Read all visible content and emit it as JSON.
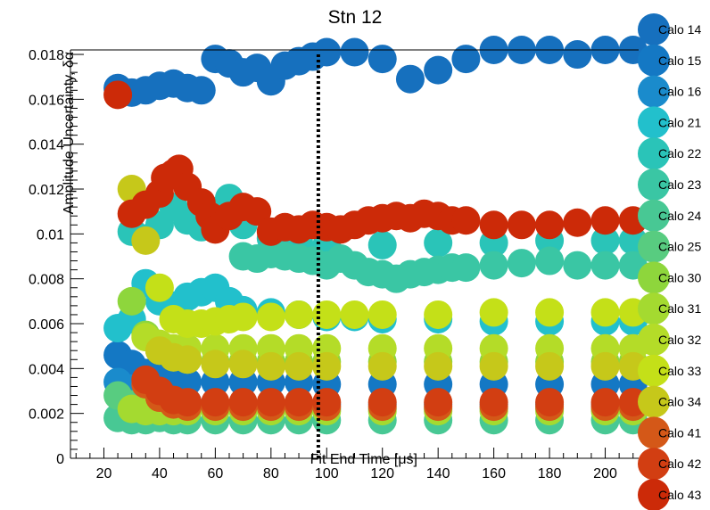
{
  "chart_data": {
    "type": "scatter",
    "title": "Stn 12",
    "xlabel": "Fit End Time [μs]",
    "ylabel": "Amplitude Uncertainty, δα",
    "xlim": [
      8,
      212
    ],
    "ylim": [
      0,
      0.0182
    ],
    "x_ticks": [
      20,
      40,
      60,
      80,
      100,
      120,
      140,
      160,
      180,
      200
    ],
    "x_tick_labels": [
      "20",
      "40",
      "60",
      "80",
      "100",
      "120",
      "140",
      "160",
      "180",
      "200"
    ],
    "y_ticks": [
      0,
      0.002,
      0.004,
      0.006,
      0.008,
      0.01,
      0.012,
      0.014,
      0.016,
      0.018
    ],
    "y_tick_labels": [
      "0",
      "0.002",
      "0.004",
      "0.006",
      "0.008",
      "0.01",
      "0.012",
      "0.014",
      "0.016",
      "0.018"
    ],
    "vline": {
      "x": 97,
      "y0": 0,
      "y1": 0.018,
      "style": "dotted",
      "color": "#000000"
    },
    "legend_position": "right",
    "series": [
      {
        "name": "Calo 14",
        "color": "#1670be",
        "x": [
          25,
          30,
          35,
          40,
          45,
          50,
          55,
          60,
          65,
          70,
          75,
          80,
          85,
          90,
          95,
          100,
          110,
          120,
          130,
          140,
          150,
          160,
          170,
          180,
          190,
          200,
          210
        ],
        "y": [
          0.0165,
          0.0163,
          0.0164,
          0.0166,
          0.0167,
          0.0165,
          0.0164,
          0.0178,
          0.0176,
          0.0172,
          0.0174,
          0.0168,
          0.0175,
          0.0177,
          0.0179,
          0.0181,
          0.0181,
          0.0178,
          0.0169,
          0.0173,
          0.0178,
          0.0182,
          0.0182,
          0.0182,
          0.018,
          0.0182,
          0.0182
        ]
      },
      {
        "name": "Calo 15",
        "color": "#1478c4",
        "x": [
          25,
          30,
          35,
          40,
          45,
          50,
          60,
          70,
          80,
          90,
          100,
          120,
          140,
          160,
          180,
          200,
          210
        ],
        "y": [
          0.0046,
          0.0042,
          0.0038,
          0.0036,
          0.0035,
          0.0034,
          0.0034,
          0.0034,
          0.0034,
          0.0034,
          0.0033,
          0.0033,
          0.0033,
          0.0033,
          0.0033,
          0.0033,
          0.0033
        ]
      },
      {
        "name": "Calo 16",
        "color": "#1a8bcc",
        "x": [
          25,
          30,
          35,
          40,
          45,
          50,
          60,
          70,
          80,
          90,
          100,
          120,
          140,
          160,
          180,
          200,
          210
        ],
        "y": [
          0.0034,
          0.0031,
          0.0028,
          0.0026,
          0.0025,
          0.0025,
          0.0024,
          0.0024,
          0.0024,
          0.0024,
          0.0024,
          0.0024,
          0.0024,
          0.0024,
          0.0024,
          0.0024,
          0.0024
        ]
      },
      {
        "name": "Calo 21",
        "color": "#22c0cc",
        "x": [
          25,
          30,
          35,
          40,
          45,
          50,
          55,
          60,
          65,
          70,
          80,
          90,
          100,
          110,
          120,
          140,
          160,
          180,
          200,
          210
        ],
        "y": [
          0.0058,
          0.0062,
          0.0078,
          0.007,
          0.0068,
          0.0072,
          0.0074,
          0.0076,
          0.007,
          0.0066,
          0.0065,
          0.0064,
          0.0063,
          0.0063,
          0.0062,
          0.0062,
          0.0061,
          0.0061,
          0.0061,
          0.0061
        ]
      },
      {
        "name": "Calo 22",
        "color": "#2ac4b8",
        "x": [
          30,
          35,
          40,
          45,
          50,
          55,
          60,
          65,
          70,
          80,
          90,
          100,
          120,
          140,
          160,
          180,
          200,
          210
        ],
        "y": [
          0.0101,
          0.0098,
          0.0104,
          0.0112,
          0.0106,
          0.0103,
          0.011,
          0.0116,
          0.0104,
          0.0098,
          0.0096,
          0.0095,
          0.0095,
          0.0096,
          0.0096,
          0.0097,
          0.0097,
          0.0097
        ]
      },
      {
        "name": "Calo 23",
        "color": "#3ac6a4",
        "x": [
          70,
          75,
          80,
          85,
          90,
          95,
          100,
          105,
          110,
          115,
          120,
          125,
          130,
          135,
          140,
          145,
          150,
          160,
          170,
          180,
          190,
          200,
          210
        ],
        "y": [
          0.009,
          0.0089,
          0.0091,
          0.009,
          0.0089,
          0.0088,
          0.0086,
          0.0089,
          0.0086,
          0.0083,
          0.0082,
          0.008,
          0.0082,
          0.0083,
          0.0084,
          0.0085,
          0.0085,
          0.0086,
          0.0087,
          0.0088,
          0.0086,
          0.0086,
          0.0086
        ]
      },
      {
        "name": "Calo 24",
        "color": "#48c894",
        "x": [
          25,
          30,
          35,
          40,
          45,
          50,
          60,
          70,
          80,
          90,
          100,
          120,
          140,
          160,
          180,
          200,
          210
        ],
        "y": [
          0.0018,
          0.0017,
          0.0017,
          0.0018,
          0.0017,
          0.0017,
          0.0017,
          0.0017,
          0.0017,
          0.0017,
          0.0017,
          0.0017,
          0.0017,
          0.0017,
          0.0017,
          0.0017,
          0.0017
        ]
      },
      {
        "name": "Calo 25",
        "color": "#58cc80",
        "x": [
          25,
          30,
          35,
          40,
          45,
          50,
          60,
          70,
          80,
          90,
          100,
          120,
          140,
          160,
          180,
          200,
          210
        ],
        "y": [
          0.0028,
          0.0024,
          0.0022,
          0.0022,
          0.0022,
          0.0022,
          0.0022,
          0.0022,
          0.0022,
          0.0022,
          0.0022,
          0.0022,
          0.0022,
          0.0022,
          0.0022,
          0.0022,
          0.0022
        ]
      },
      {
        "name": "Calo 30",
        "color": "#8ed63c",
        "x": [
          30,
          35,
          40,
          45,
          50,
          60,
          70,
          80,
          90,
          100,
          120,
          140,
          160,
          180,
          200,
          210
        ],
        "y": [
          0.007,
          0.0055,
          0.0048,
          0.0045,
          0.0044,
          0.0043,
          0.0043,
          0.0043,
          0.0043,
          0.0043,
          0.0043,
          0.0043,
          0.0043,
          0.0043,
          0.0043,
          0.0043
        ]
      },
      {
        "name": "Calo 31",
        "color": "#a4da30",
        "x": [
          30,
          35,
          40,
          45,
          50,
          60,
          70,
          80,
          90,
          100,
          120,
          140,
          160,
          180,
          200,
          210
        ],
        "y": [
          0.0022,
          0.0021,
          0.0021,
          0.0021,
          0.0021,
          0.0021,
          0.0021,
          0.0021,
          0.0021,
          0.0021,
          0.0021,
          0.0021,
          0.0021,
          0.0021,
          0.0021,
          0.0021
        ]
      },
      {
        "name": "Calo 32",
        "color": "#b4dc28",
        "x": [
          35,
          40,
          45,
          50,
          60,
          70,
          80,
          90,
          100,
          120,
          140,
          160,
          180,
          200,
          210
        ],
        "y": [
          0.0054,
          0.0051,
          0.0049,
          0.0049,
          0.0049,
          0.0049,
          0.0049,
          0.0049,
          0.0049,
          0.0049,
          0.0049,
          0.0049,
          0.0049,
          0.0049,
          0.0049
        ]
      },
      {
        "name": "Calo 33",
        "color": "#c4e018",
        "x": [
          40,
          45,
          50,
          55,
          60,
          65,
          70,
          80,
          90,
          100,
          110,
          120,
          140,
          160,
          180,
          200,
          210
        ],
        "y": [
          0.0076,
          0.0062,
          0.006,
          0.006,
          0.0061,
          0.0062,
          0.0063,
          0.0063,
          0.0064,
          0.0064,
          0.0064,
          0.0064,
          0.0064,
          0.0065,
          0.0065,
          0.0065,
          0.0065
        ]
      },
      {
        "name": "Calo 34",
        "color": "#c6c81a",
        "x": [
          30,
          35,
          40,
          45,
          50,
          60,
          70,
          80,
          90,
          100,
          120,
          140,
          160,
          180,
          200,
          210
        ],
        "y": [
          0.012,
          0.0097,
          0.0048,
          0.0045,
          0.0044,
          0.0042,
          0.0042,
          0.0041,
          0.0041,
          0.0041,
          0.0041,
          0.0041,
          0.0041,
          0.0041,
          0.0041,
          0.0041
        ]
      },
      {
        "name": "Calo 41",
        "color": "#d45818",
        "x": [
          35,
          40,
          45,
          50,
          60,
          70,
          80,
          90,
          100,
          120,
          140,
          160,
          180,
          200,
          210
        ],
        "y": [
          0.0033,
          0.0027,
          0.0024,
          0.0023,
          0.0023,
          0.0023,
          0.0023,
          0.0023,
          0.0023,
          0.0023,
          0.0023,
          0.0023,
          0.0023,
          0.0023,
          0.0023
        ]
      },
      {
        "name": "Calo 42",
        "color": "#d23e12",
        "x": [
          35,
          40,
          45,
          50,
          60,
          70,
          80,
          90,
          100,
          120,
          140,
          160,
          180,
          200,
          210
        ],
        "y": [
          0.0035,
          0.003,
          0.0026,
          0.0025,
          0.0025,
          0.0025,
          0.0025,
          0.0025,
          0.0025,
          0.0025,
          0.0025,
          0.0025,
          0.0025,
          0.0025,
          0.0025
        ]
      },
      {
        "name": "Calo 43",
        "color": "#cc2a08",
        "x": [
          25,
          30,
          35,
          40,
          42,
          45,
          47,
          50,
          55,
          58,
          60,
          65,
          70,
          75,
          80,
          85,
          90,
          95,
          100,
          105,
          110,
          115,
          120,
          125,
          130,
          135,
          140,
          145,
          150,
          160,
          170,
          180,
          190,
          200,
          210
        ],
        "y": [
          0.0162,
          0.0109,
          0.0113,
          0.0118,
          0.0125,
          0.0127,
          0.0129,
          0.0121,
          0.0114,
          0.0108,
          0.0102,
          0.0108,
          0.0112,
          0.011,
          0.0101,
          0.0103,
          0.0102,
          0.0104,
          0.0103,
          0.0102,
          0.0104,
          0.0106,
          0.0107,
          0.0108,
          0.0107,
          0.0109,
          0.0108,
          0.0106,
          0.0106,
          0.0104,
          0.0104,
          0.0104,
          0.0105,
          0.0106,
          0.0106
        ]
      }
    ]
  }
}
